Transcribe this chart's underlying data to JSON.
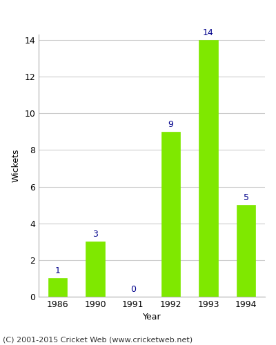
{
  "categories": [
    "1986",
    "1990",
    "1991",
    "1992",
    "1993",
    "1994"
  ],
  "values": [
    1,
    3,
    0,
    9,
    14,
    5
  ],
  "bar_color": "#7FE800",
  "bar_edge_color": "#7FE800",
  "xlabel": "Year",
  "ylabel": "Wickets",
  "ylim": [
    0,
    14
  ],
  "yticks": [
    0,
    2,
    4,
    6,
    8,
    10,
    12,
    14
  ],
  "label_color": "#00008B",
  "label_fontsize": 9,
  "axis_label_fontsize": 9,
  "tick_fontsize": 9,
  "grid_color": "#cccccc",
  "background_color": "#ffffff",
  "footer_text": "(C) 2001-2015 Cricket Web (www.cricketweb.net)",
  "footer_fontsize": 8
}
